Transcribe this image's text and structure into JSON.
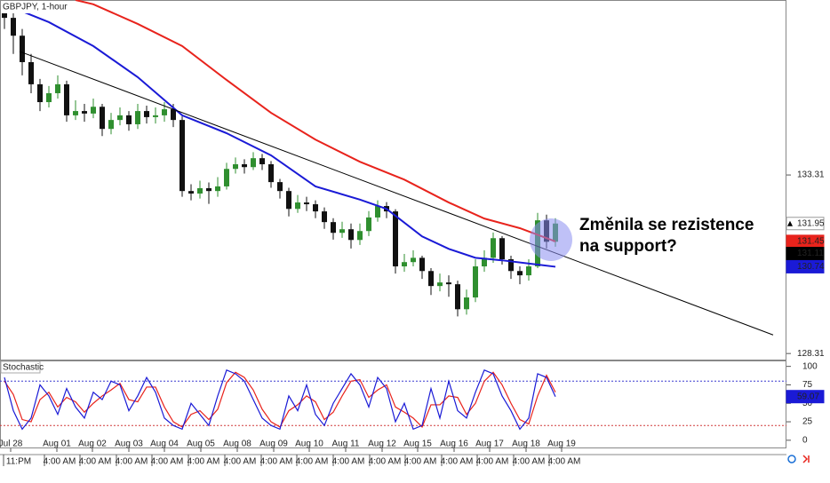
{
  "chart_data": {
    "type": "candlestick",
    "title": "GBPJPY, 1-hour",
    "xlim": [
      -0.5,
      88
    ],
    "ylim": [
      128.14,
      138.21
    ],
    "yticks": [
      133.31,
      128.31
    ],
    "candles": {
      "up_color": "#2f8f2f",
      "down_color": "#111111",
      "open": [
        137.9,
        137.71,
        137.21,
        136.47,
        135.85,
        135.35,
        135.6,
        135.85,
        134.98,
        135.1,
        135.03,
        135.22,
        134.6,
        134.85,
        134.98,
        134.73,
        135.1,
        134.93,
        134.98,
        135.15,
        134.85,
        132.86,
        132.79,
        132.94,
        132.86,
        132.99,
        133.48,
        133.61,
        133.53,
        133.78,
        133.61,
        133.11,
        132.86,
        132.36,
        132.54,
        132.49,
        132.29,
        131.99,
        131.69,
        131.79,
        131.49,
        131.74,
        132.12,
        132.44,
        132.29,
        130.75,
        130.87,
        130.99,
        130.62,
        130.2,
        130.3,
        130.25,
        129.55,
        129.88,
        130.75,
        130.99,
        131.54,
        130.95,
        130.62,
        130.5,
        130.75,
        132.04,
        131.44
      ],
      "high": [
        138.15,
        138.1,
        137.4,
        136.7,
        136.0,
        135.8,
        136.1,
        135.95,
        135.4,
        135.3,
        135.45,
        135.3,
        135.05,
        135.2,
        135.1,
        135.3,
        135.25,
        135.2,
        135.35,
        135.3,
        134.95,
        133.05,
        133.15,
        133.1,
        133.25,
        133.65,
        133.8,
        133.75,
        133.95,
        133.9,
        133.7,
        133.2,
        132.95,
        132.75,
        132.7,
        132.6,
        132.4,
        132.1,
        132.0,
        131.95,
        131.95,
        132.3,
        132.6,
        132.55,
        132.35,
        131.1,
        131.2,
        131.05,
        130.7,
        130.55,
        130.5,
        130.35,
        130.1,
        130.95,
        131.2,
        131.7,
        131.6,
        131.05,
        130.75,
        130.95,
        132.25,
        132.2,
        132.1
      ],
      "low": [
        137.4,
        136.7,
        136.1,
        135.6,
        135.1,
        135.2,
        135.45,
        134.8,
        134.85,
        134.8,
        134.9,
        134.4,
        134.45,
        134.7,
        134.55,
        134.6,
        134.75,
        134.75,
        134.8,
        134.65,
        132.7,
        132.6,
        132.65,
        132.5,
        132.7,
        132.9,
        133.35,
        133.35,
        133.45,
        133.45,
        132.95,
        132.65,
        132.15,
        132.25,
        132.3,
        132.1,
        131.8,
        131.5,
        131.55,
        131.25,
        131.35,
        131.6,
        132.0,
        132.1,
        130.55,
        130.6,
        130.75,
        130.4,
        129.95,
        130.05,
        129.9,
        129.35,
        129.4,
        129.75,
        130.6,
        130.85,
        130.8,
        130.4,
        130.25,
        130.35,
        130.7,
        131.25,
        131.3
      ],
      "close": [
        137.71,
        137.21,
        136.47,
        135.85,
        135.35,
        135.6,
        135.85,
        134.98,
        135.1,
        135.03,
        135.22,
        134.6,
        134.85,
        134.98,
        134.73,
        135.1,
        134.93,
        134.98,
        135.15,
        134.85,
        132.86,
        132.79,
        132.94,
        132.86,
        132.99,
        133.48,
        133.61,
        133.53,
        133.78,
        133.61,
        133.11,
        132.86,
        132.36,
        132.54,
        132.49,
        132.29,
        131.99,
        131.69,
        131.79,
        131.49,
        131.74,
        132.12,
        132.44,
        132.29,
        130.75,
        130.87,
        130.99,
        130.62,
        130.2,
        130.3,
        130.25,
        129.55,
        129.88,
        130.75,
        130.99,
        131.54,
        130.95,
        130.62,
        130.5,
        130.75,
        132.04,
        131.44,
        131.95
      ]
    },
    "series": [
      {
        "name": "MA red",
        "color": "#e8231c",
        "x": [
          8,
          10,
          15,
          20,
          25,
          30,
          35,
          40,
          45,
          50,
          54,
          58,
          62
        ],
        "values": [
          138.21,
          138.09,
          137.54,
          136.92,
          135.97,
          135.05,
          134.3,
          133.68,
          133.18,
          132.54,
          132.09,
          131.82,
          131.45
        ]
      },
      {
        "name": "MA blue",
        "color": "#1a1ad6",
        "x": [
          0,
          5,
          10,
          15,
          20,
          25,
          30,
          35,
          40,
          43,
          47,
          50,
          53,
          56,
          60,
          62
        ],
        "values": [
          138.09,
          137.59,
          136.92,
          136.05,
          134.98,
          134.48,
          133.86,
          132.99,
          132.62,
          132.36,
          131.59,
          131.24,
          130.99,
          130.92,
          130.8,
          130.74
        ]
      },
      {
        "name": "Trendline",
        "color": "#000000",
        "x": [
          1.7,
          86.5
        ],
        "values": [
          136.77,
          128.83
        ]
      }
    ],
    "price_markers": [
      {
        "value": 131.95,
        "bg": "#ffffff",
        "fg": "#000000"
      },
      {
        "value": 131.45,
        "bg": "#e8231c",
        "fg": "#ffffff"
      },
      {
        "value": 131.11,
        "bg": "#000000",
        "fg": "#ffffff"
      },
      {
        "value": 130.74,
        "bg": "#1a1ad6",
        "fg": "#ffffff"
      }
    ],
    "annotation": [
      "Změnila se rezistence",
      "na support?"
    ],
    "date_ticks": [
      {
        "value": 0.7,
        "label": "Jul 28"
      },
      {
        "value": 5.9,
        "label": "Aug 01"
      },
      {
        "value": 9.9,
        "label": "Aug 02"
      },
      {
        "value": 14,
        "label": "Aug 03"
      },
      {
        "value": 18,
        "label": "Aug 04"
      },
      {
        "value": 22.1,
        "label": "Aug 05"
      },
      {
        "value": 26.2,
        "label": "Aug 08"
      },
      {
        "value": 30.3,
        "label": "Aug 09"
      },
      {
        "value": 34.3,
        "label": "Aug 10"
      },
      {
        "value": 38.4,
        "label": "Aug 11"
      },
      {
        "value": 42.5,
        "label": "Aug 12"
      },
      {
        "value": 46.5,
        "label": "Aug 15"
      },
      {
        "value": 50.6,
        "label": "Aug 16"
      },
      {
        "value": 54.6,
        "label": "Aug 17"
      },
      {
        "value": 58.7,
        "label": "Aug 18"
      },
      {
        "value": 62.7,
        "label": "Aug 19"
      }
    ],
    "time_ticks": [
      {
        "value": 1.6,
        "label": "11:PM"
      },
      {
        "value": 6.2,
        "label": "4:00 AM"
      },
      {
        "value": 10.2,
        "label": "4:00 AM"
      },
      {
        "value": 14.3,
        "label": "4:00 AM"
      },
      {
        "value": 18.3,
        "label": "4:00 AM"
      },
      {
        "value": 22.4,
        "label": "4:00 AM"
      },
      {
        "value": 26.5,
        "label": "4:00 AM"
      },
      {
        "value": 30.6,
        "label": "4:00 AM"
      },
      {
        "value": 34.6,
        "label": "4:00 AM"
      },
      {
        "value": 38.7,
        "label": "4:00 AM"
      },
      {
        "value": 42.8,
        "label": "4:00 AM"
      },
      {
        "value": 46.8,
        "label": "4:00 AM"
      },
      {
        "value": 50.9,
        "label": "4:00 AM"
      },
      {
        "value": 54.9,
        "label": "4:00 AM"
      },
      {
        "value": 59,
        "label": "4:00 AM"
      },
      {
        "value": 63,
        "label": "4:00 AM"
      }
    ],
    "stochastic": {
      "title": "Stochastic",
      "ylim": [
        -11,
        108
      ],
      "yticks": [
        100,
        75,
        50,
        25,
        0
      ],
      "levels": [
        80,
        20
      ],
      "k": {
        "color": "#1a1ad6",
        "values": [
          85,
          40,
          15,
          30,
          75,
          60,
          35,
          70,
          45,
          30,
          65,
          55,
          80,
          75,
          40,
          60,
          85,
          65,
          30,
          20,
          15,
          50,
          35,
          20,
          60,
          95,
          90,
          80,
          55,
          30,
          20,
          15,
          60,
          40,
          75,
          35,
          20,
          50,
          70,
          90,
          75,
          45,
          85,
          70,
          25,
          50,
          15,
          20,
          70,
          30,
          80,
          40,
          30,
          65,
          95,
          90,
          60,
          40,
          15,
          30,
          90,
          85,
          59.07
        ]
      },
      "d": {
        "color": "#e8231c",
        "values": [
          80,
          62,
          28,
          25,
          55,
          65,
          45,
          58,
          52,
          38,
          50,
          60,
          68,
          77,
          55,
          52,
          72,
          72,
          45,
          25,
          18,
          35,
          40,
          28,
          42,
          78,
          92,
          85,
          68,
          42,
          25,
          18,
          40,
          48,
          60,
          52,
          28,
          38,
          60,
          80,
          82,
          58,
          68,
          75,
          45,
          38,
          30,
          18,
          48,
          48,
          60,
          58,
          35,
          50,
          80,
          92,
          75,
          50,
          28,
          22,
          60,
          88,
          65
        ]
      },
      "marker": {
        "value": 59.07,
        "bg": "#1a1ad6",
        "fg": "#ffffff"
      }
    }
  }
}
